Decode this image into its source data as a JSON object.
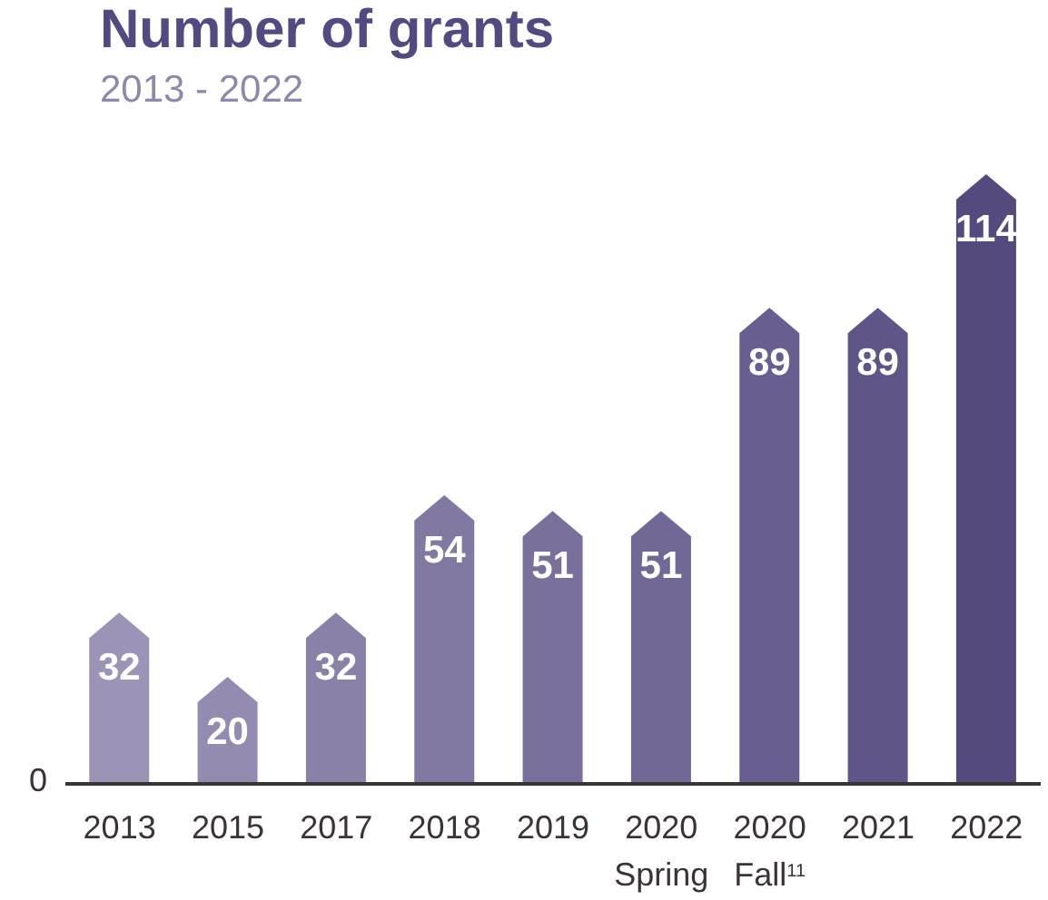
{
  "chart_data": {
    "type": "bar",
    "title": "Number of grants",
    "subtitle": "2013 - 2022",
    "categories": [
      "2013",
      "2015",
      "2017",
      "2018",
      "2019",
      "2020 Spring",
      "2020 Fall$^{11}$",
      "2021",
      "2022"
    ],
    "values": [
      32,
      20,
      32,
      54,
      51,
      51,
      89,
      89,
      114
    ],
    "colors": [
      "#9c94b6",
      "#948bb0",
      "#8a81a9",
      "#8179a2",
      "#7a709c",
      "#716896",
      "#685e8f",
      "#5f5588",
      "#554a7d"
    ],
    "annotations": [
      "0"
    ],
    "data_labels": true
  }
}
